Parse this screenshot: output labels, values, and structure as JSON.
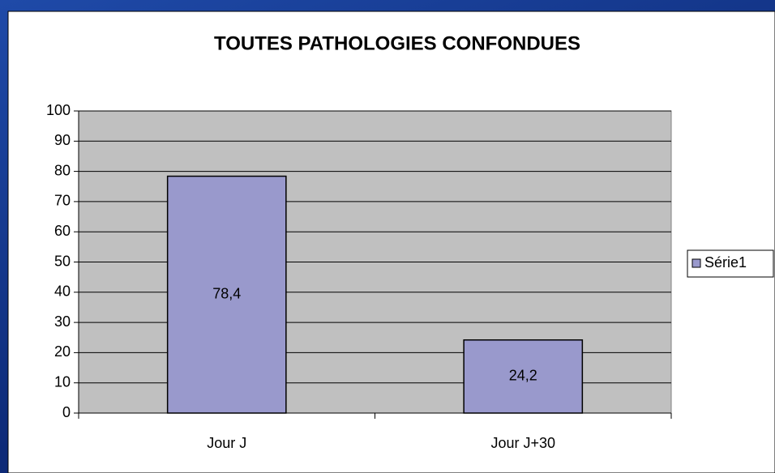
{
  "chart_data": {
    "type": "bar",
    "title": "TOUTES PATHOLOGIES CONFONDUES",
    "categories": [
      "Jour J",
      "Jour J+30"
    ],
    "series": [
      {
        "name": "Série1",
        "color": "#9999cc",
        "values": [
          78.4,
          24.2
        ],
        "value_labels": [
          "78,4",
          "24,2"
        ]
      }
    ],
    "ylim": [
      0,
      100
    ],
    "yticks": [
      0,
      10,
      20,
      30,
      40,
      50,
      60,
      70,
      80,
      90,
      100
    ],
    "grid": true,
    "legend": "right"
  }
}
